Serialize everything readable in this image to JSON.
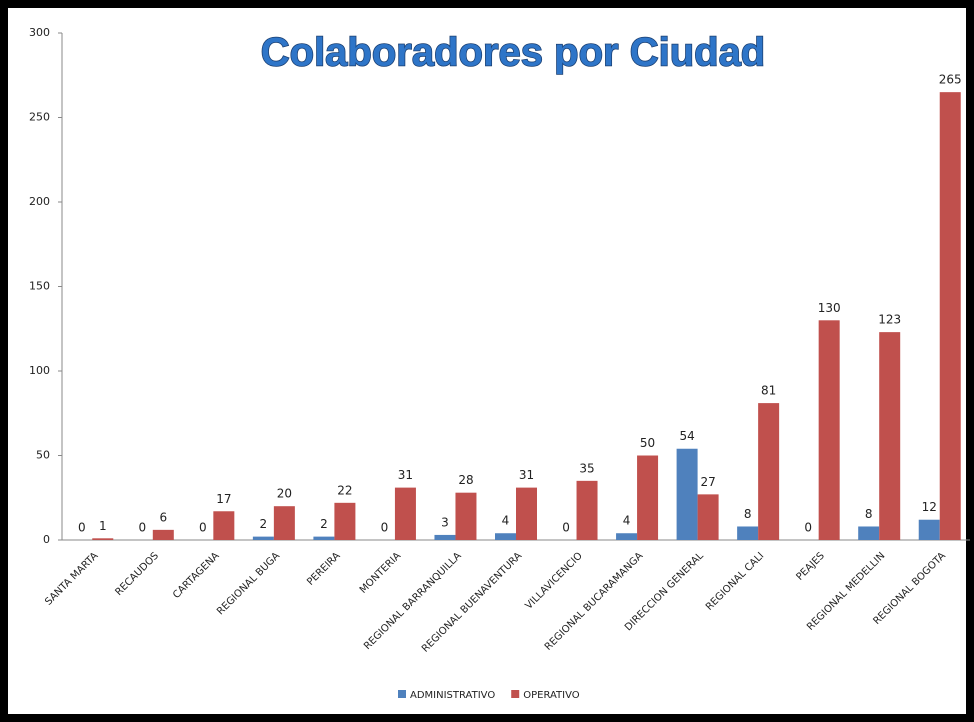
{
  "chart_data": {
    "type": "bar",
    "title": "Colaboradores por Ciudad",
    "categories": [
      "SANTA MARTA",
      "RECAUDOS",
      "CARTAGENA",
      "REGIONAL BUGA",
      "PEREIRA",
      "MONTERIA",
      "REGIONAL BARRANQUILLA",
      "REGIONAL BUENAVENTURA",
      "VILLAVICENCIO",
      "REGIONAL BUCARAMANGA",
      "DIRECCION GENERAL",
      "REGIONAL CALI",
      "PEAJES",
      "REGIONAL MEDELLIN",
      "REGIONAL BOGOTA"
    ],
    "series": [
      {
        "name": "ADMINISTRATIVO",
        "color": "#4f81bd",
        "values": [
          0,
          0,
          0,
          2,
          2,
          0,
          3,
          4,
          0,
          4,
          54,
          8,
          0,
          8,
          12
        ]
      },
      {
        "name": "OPERATIVO",
        "color": "#c0504d",
        "values": [
          1,
          6,
          17,
          20,
          22,
          31,
          28,
          31,
          35,
          50,
          27,
          81,
          130,
          123,
          265
        ]
      }
    ],
    "ylim": [
      0,
      300
    ],
    "yticks": [
      0,
      50,
      100,
      150,
      200,
      250,
      300
    ],
    "grid": false,
    "legend": "bottom"
  }
}
